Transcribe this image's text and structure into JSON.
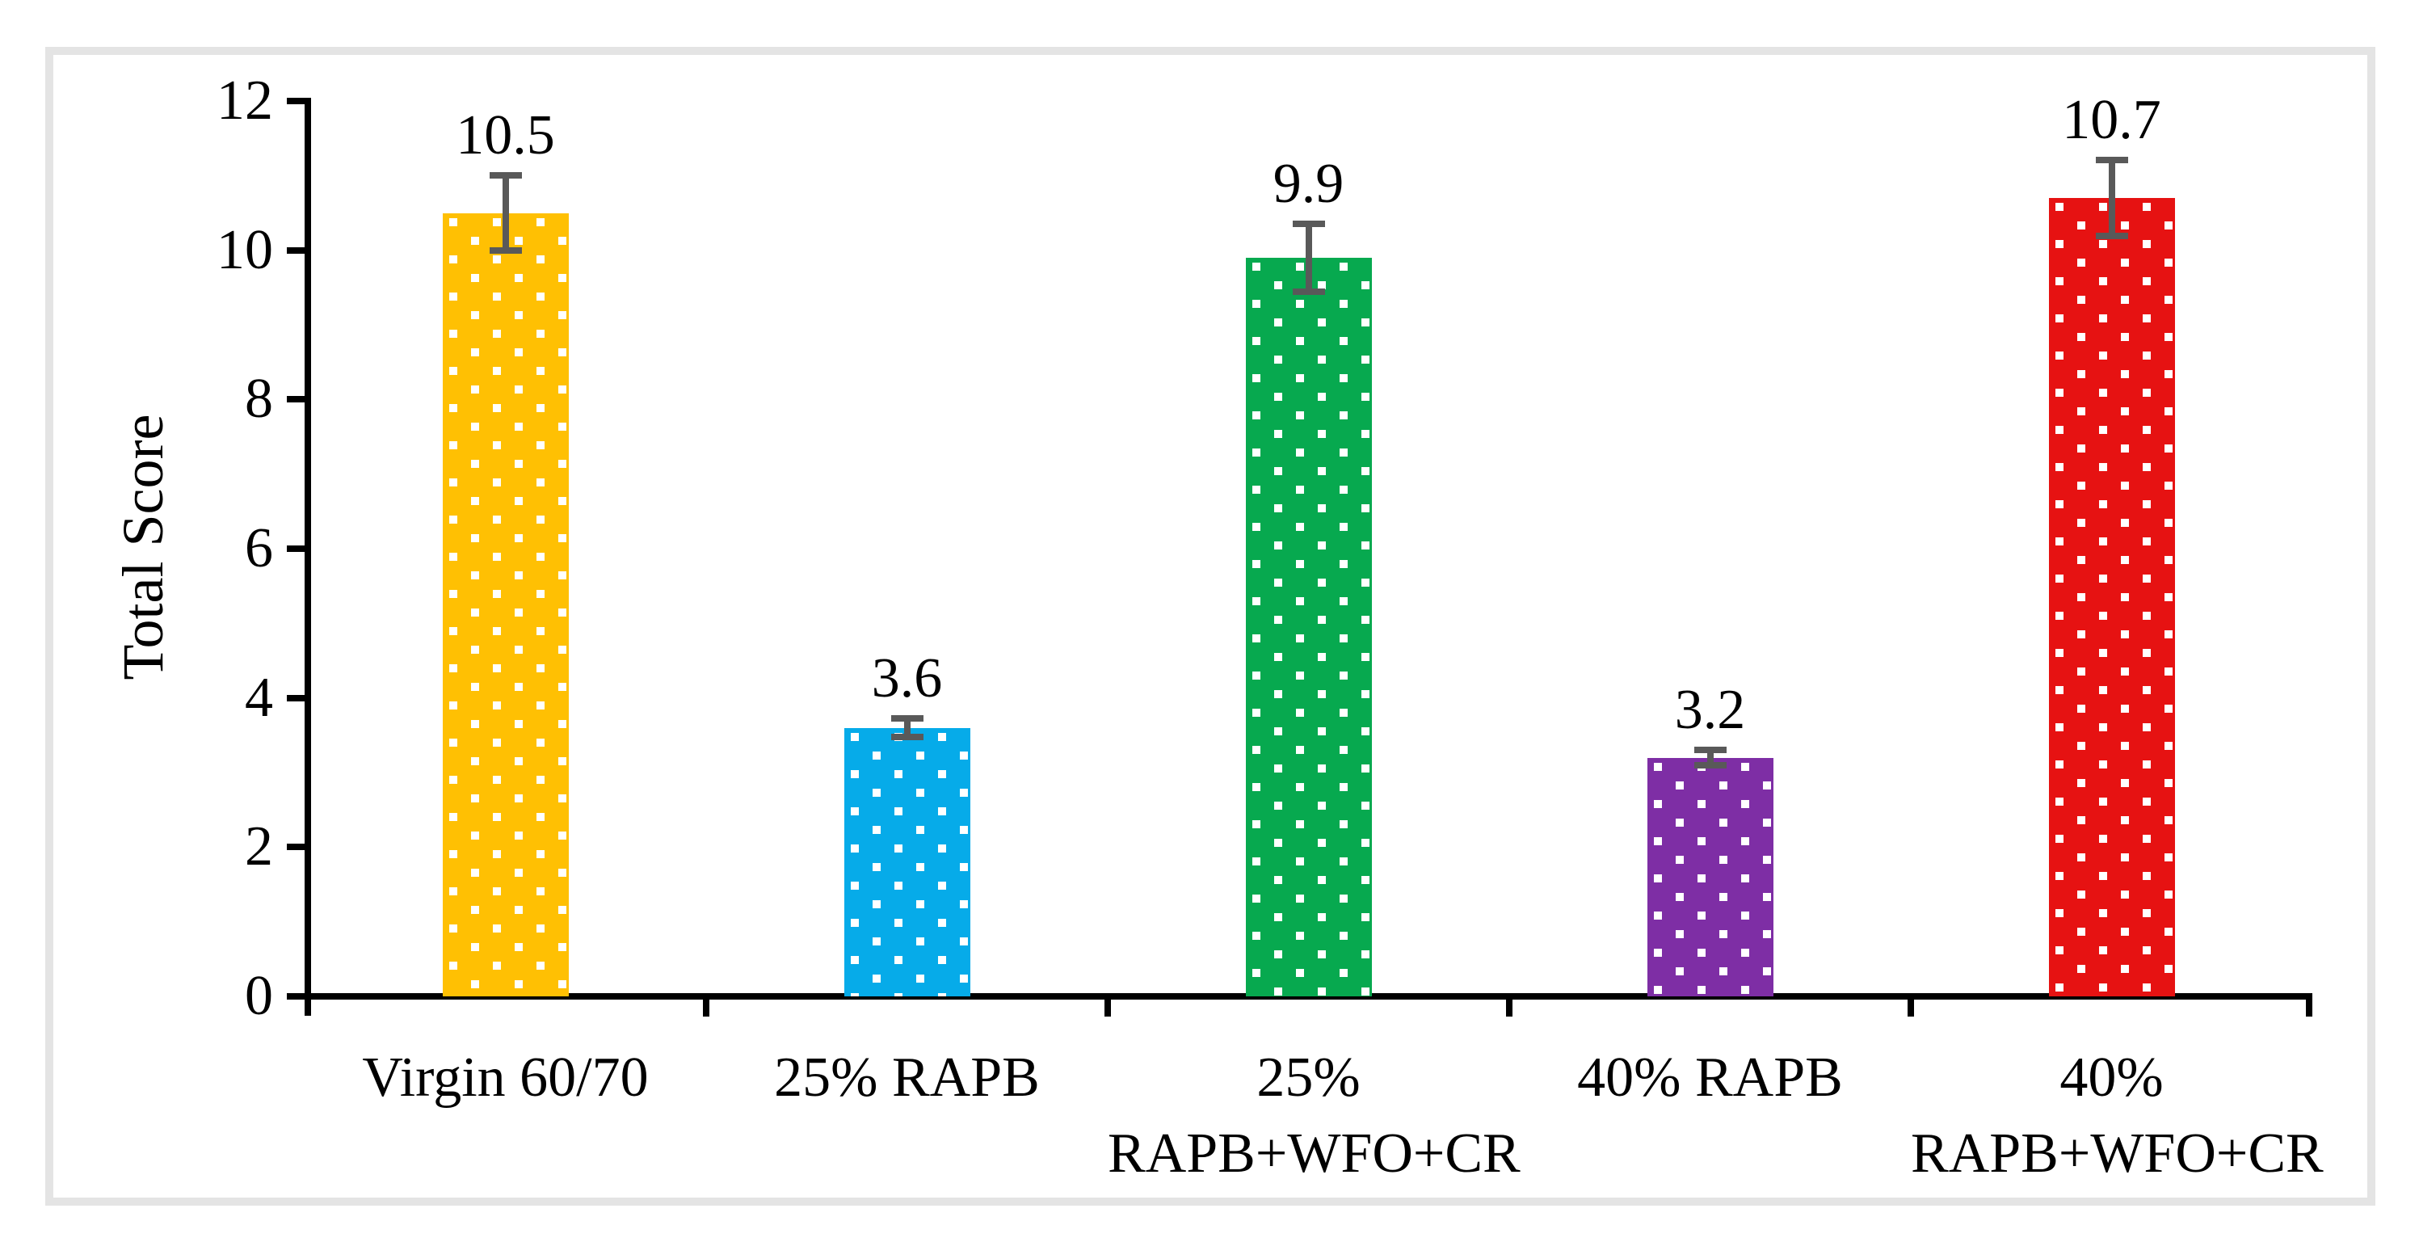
{
  "figure": {
    "kind": "bar-chart-figure",
    "background": "#ffffff",
    "frame_color": "#e4e4e4",
    "axis_color": "#000000"
  },
  "chart_data": {
    "type": "bar",
    "title": "",
    "xlabel": "",
    "ylabel": "Total Score",
    "ylim": [
      0,
      12
    ],
    "yticks": [
      0,
      2,
      4,
      6,
      8,
      10,
      12
    ],
    "grid": false,
    "legend": "none",
    "categories": [
      "Virgin 60/70",
      "25% RAPB",
      "25%\nRAPB+WFO+CR",
      "40% RAPB",
      "40%\nRAPB+WFO+CR"
    ],
    "values": [
      10.5,
      3.6,
      9.9,
      3.2,
      10.7
    ],
    "data_labels": [
      "10.5",
      "3.6",
      "9.9",
      "3.2",
      "10.7"
    ],
    "error_bars": [
      0.55,
      0.17,
      0.5,
      0.15,
      0.55
    ],
    "bar_colors": [
      "#FFC003",
      "#06ABE9",
      "#07A94F",
      "#7E2EA5",
      "#E61212"
    ],
    "bar_pattern": "white-square-dots",
    "error_bar_color": "#595959"
  }
}
